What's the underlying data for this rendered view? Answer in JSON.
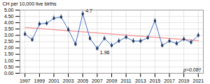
{
  "chart_data": {
    "type": "line",
    "ylabel": "CH per 10,000 live births",
    "x": [
      1997,
      1998,
      1999,
      2000,
      2001,
      2002,
      2003,
      2004,
      2005,
      2006,
      2007,
      2008,
      2009,
      2010,
      2011,
      2012,
      2013,
      2014,
      2015,
      2016,
      2017,
      2018,
      2019,
      2020,
      2021
    ],
    "series": [
      {
        "type": "line",
        "color": "#f4a0a0",
        "x": [
          1997,
          2021
        ],
        "values": [
          3.62,
          2.58
        ]
      },
      {
        "type": "line",
        "color": "#4472c4",
        "marker": "square",
        "values": [
          3.1,
          2.65,
          3.9,
          3.95,
          4.35,
          4.45,
          3.45,
          2.3,
          4.7,
          2.75,
          1.96,
          2.75,
          2.2,
          2.55,
          2.85,
          2.55,
          2.55,
          2.8,
          4.15,
          2.2,
          2.55,
          2.35,
          2.7,
          2.45,
          3.0
        ],
        "error_bars": {
          "color": "#1f3864",
          "low": [
            0.18,
            0.18,
            0.18,
            0.18,
            0.18,
            0.18,
            0.18,
            0.18,
            0.18,
            0.18,
            0.18,
            0.18,
            0.18,
            0.18,
            0.18,
            0.18,
            0.18,
            0.18,
            0.18,
            0.18,
            0.18,
            0.18,
            0.18,
            0.18,
            0.18
          ],
          "high": [
            0.18,
            0.18,
            0.18,
            0.18,
            0.18,
            0.18,
            0.18,
            0.18,
            0.18,
            0.18,
            0.18,
            0.18,
            0.18,
            0.18,
            0.18,
            0.18,
            0.18,
            0.18,
            0.18,
            0.18,
            0.18,
            0.18,
            0.18,
            0.18,
            0.18
          ]
        }
      }
    ],
    "annotations": [
      {
        "text": "4.7",
        "x": 2005,
        "y": 4.7
      },
      {
        "text": "1.96",
        "x": 2007,
        "y": 1.96
      },
      {
        "text": "p=0.08†"
      }
    ],
    "xlim": [
      1996.3,
      2021.7
    ],
    "xticks": [
      1997,
      1999,
      2001,
      2003,
      2005,
      2007,
      2009,
      2011,
      2013,
      2015,
      2017,
      2019,
      2021
    ],
    "ylim": [
      0.0,
      5.0
    ],
    "yticks": [
      {
        "value": 0.0,
        "label": "0.00"
      },
      {
        "value": 0.5,
        "label": "0.50"
      },
      {
        "value": 1.0,
        "label": "1.00"
      },
      {
        "value": 1.5,
        "label": "1.50"
      },
      {
        "value": 2.0,
        "label": "2.00"
      },
      {
        "value": 2.5,
        "label": "2.50"
      },
      {
        "value": 3.0,
        "label": "3.00"
      },
      {
        "value": 3.5,
        "label": "3.50"
      },
      {
        "value": 4.0,
        "label": "4.00"
      },
      {
        "value": 4.5,
        "label": "4.50"
      },
      {
        "value": 5.0,
        "label": "5.00"
      }
    ],
    "grid": true
  }
}
